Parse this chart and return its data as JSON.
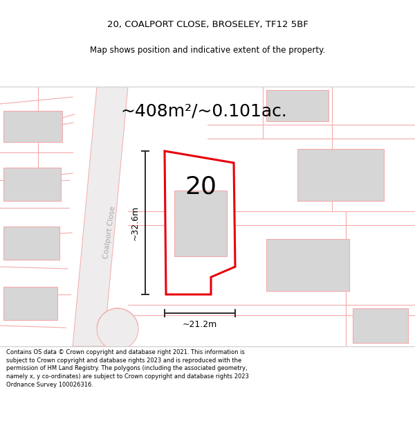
{
  "title_line1": "20, COALPORT CLOSE, BROSELEY, TF12 5BF",
  "title_line2": "Map shows position and indicative extent of the property.",
  "area_label": "~408m²/~0.101ac.",
  "number_label": "20",
  "dim_height": "~32.6m",
  "dim_width": "~21.2m",
  "street_label": "Coalport Close",
  "footer_text": "Contains OS data © Crown copyright and database right 2021. This information is subject to Crown copyright and database rights 2023 and is reproduced with the permission of HM Land Registry. The polygons (including the associated geometry, namely x, y co-ordinates) are subject to Crown copyright and database rights 2023 Ordnance Survey 100026316.",
  "map_bg": "#f2efef",
  "plot_fill": "#ffffff",
  "plot_edge_color": "#e8000a",
  "building_fill": "#d6d6d6",
  "road_line_color": "#f5aaaa",
  "dim_line_color": "#2a2a2a",
  "white": "#ffffff",
  "title_fontsize": 9.5,
  "subtitle_fontsize": 8.5,
  "area_fontsize": 18,
  "number_fontsize": 26,
  "dim_fontsize": 9,
  "street_fontsize": 7.5,
  "footer_fontsize": 6.0
}
